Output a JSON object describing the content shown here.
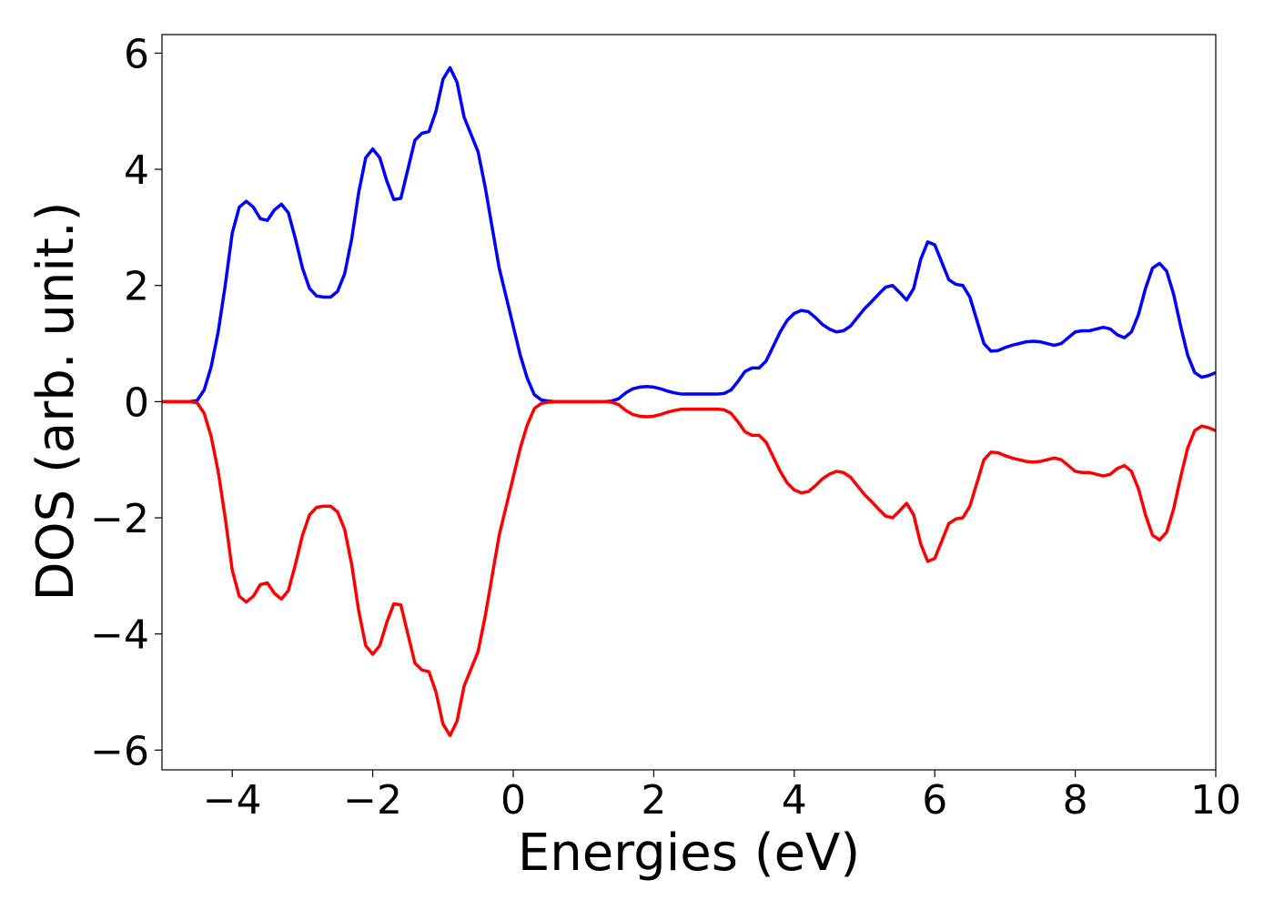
{
  "chart_data": {
    "type": "line",
    "xlabel": "Energies (eV)",
    "ylabel": "DOS (arb. unit.)",
    "x": [
      -5,
      -4.9,
      -4.8,
      -4.7,
      -4.6,
      -4.5,
      -4.4,
      -4.3,
      -4.2,
      -4.1,
      -4,
      -3.9,
      -3.8,
      -3.7,
      -3.6,
      -3.5,
      -3.4,
      -3.3,
      -3.2,
      -3.1,
      -3,
      -2.9,
      -2.8,
      -2.7,
      -2.6,
      -2.5,
      -2.4,
      -2.3,
      -2.2,
      -2.1,
      -2,
      -1.9,
      -1.8,
      -1.7,
      -1.6,
      -1.5,
      -1.4,
      -1.3,
      -1.2,
      -1.1,
      -1,
      -0.9,
      -0.8,
      -0.7,
      -0.6,
      -0.5,
      -0.4,
      -0.3,
      -0.2,
      -0.1,
      0,
      0.1,
      0.2,
      0.3,
      0.4,
      0.5,
      0.6,
      0.7,
      0.8,
      0.9,
      1,
      1.1,
      1.2,
      1.3,
      1.4,
      1.5,
      1.6,
      1.7,
      1.8,
      1.9,
      2,
      2.1,
      2.2,
      2.3,
      2.4,
      2.5,
      2.6,
      2.7,
      2.8,
      2.9,
      3,
      3.1,
      3.2,
      3.3,
      3.4,
      3.5,
      3.6,
      3.7,
      3.8,
      3.9,
      4,
      4.1,
      4.2,
      4.3,
      4.4,
      4.5,
      4.6,
      4.7,
      4.8,
      4.9,
      5,
      5.1,
      5.2,
      5.3,
      5.4,
      5.5,
      5.6,
      5.7,
      5.8,
      5.9,
      6,
      6.1,
      6.2,
      6.3,
      6.4,
      6.5,
      6.6,
      6.7,
      6.8,
      6.9,
      7,
      7.1,
      7.2,
      7.3,
      7.4,
      7.5,
      7.6,
      7.7,
      7.8,
      7.9,
      8,
      8.1,
      8.2,
      8.3,
      8.4,
      8.5,
      8.6,
      8.7,
      8.8,
      8.9,
      9,
      9.1,
      9.2,
      9.3,
      9.4,
      9.5,
      9.6,
      9.7,
      9.8,
      9.9,
      10
    ],
    "series": [
      {
        "color": "#0000ff",
        "values": [
          0,
          0,
          0,
          0,
          0,
          0.02,
          0.2,
          0.6,
          1.2,
          2.0,
          2.9,
          3.35,
          3.45,
          3.35,
          3.15,
          3.12,
          3.3,
          3.4,
          3.25,
          2.8,
          2.3,
          1.95,
          1.82,
          1.8,
          1.8,
          1.9,
          2.2,
          2.8,
          3.6,
          4.2,
          4.35,
          4.2,
          3.8,
          3.48,
          3.5,
          4.0,
          4.5,
          4.62,
          4.65,
          5.0,
          5.55,
          5.75,
          5.5,
          4.9,
          4.6,
          4.3,
          3.7,
          3.0,
          2.3,
          1.8,
          1.3,
          0.8,
          0.4,
          0.12,
          0.03,
          0.01,
          0,
          0,
          0,
          0,
          0,
          0,
          0,
          0,
          0.01,
          0.05,
          0.15,
          0.22,
          0.25,
          0.26,
          0.25,
          0.22,
          0.18,
          0.15,
          0.13,
          0.13,
          0.13,
          0.13,
          0.13,
          0.13,
          0.14,
          0.2,
          0.35,
          0.52,
          0.58,
          0.58,
          0.7,
          0.95,
          1.2,
          1.4,
          1.52,
          1.57,
          1.55,
          1.45,
          1.33,
          1.25,
          1.2,
          1.22,
          1.3,
          1.45,
          1.6,
          1.72,
          1.85,
          1.97,
          2.0,
          1.88,
          1.75,
          1.95,
          2.45,
          2.75,
          2.7,
          2.4,
          2.1,
          2.02,
          2.0,
          1.8,
          1.4,
          1.0,
          0.87,
          0.88,
          0.93,
          0.97,
          1.0,
          1.03,
          1.04,
          1.03,
          1.0,
          0.97,
          1.0,
          1.1,
          1.2,
          1.22,
          1.22,
          1.25,
          1.28,
          1.25,
          1.15,
          1.1,
          1.2,
          1.5,
          1.95,
          2.3,
          2.38,
          2.25,
          1.85,
          1.3,
          0.8,
          0.5,
          0.42,
          0.45,
          0.5
        ]
      },
      {
        "color": "#ff0000",
        "values": [
          0,
          0,
          0,
          0,
          0,
          -0.02,
          -0.2,
          -0.6,
          -1.2,
          -2.0,
          -2.9,
          -3.35,
          -3.45,
          -3.35,
          -3.15,
          -3.12,
          -3.3,
          -3.4,
          -3.25,
          -2.8,
          -2.3,
          -1.95,
          -1.82,
          -1.8,
          -1.8,
          -1.9,
          -2.2,
          -2.8,
          -3.6,
          -4.2,
          -4.35,
          -4.2,
          -3.8,
          -3.48,
          -3.5,
          -4.0,
          -4.5,
          -4.62,
          -4.65,
          -5.0,
          -5.55,
          -5.75,
          -5.5,
          -4.9,
          -4.6,
          -4.3,
          -3.7,
          -3.0,
          -2.3,
          -1.8,
          -1.3,
          -0.8,
          -0.4,
          -0.12,
          -0.03,
          -0.01,
          0,
          0,
          0,
          0,
          0,
          0,
          0,
          0,
          -0.01,
          -0.05,
          -0.15,
          -0.22,
          -0.25,
          -0.26,
          -0.25,
          -0.22,
          -0.18,
          -0.15,
          -0.13,
          -0.13,
          -0.13,
          -0.13,
          -0.13,
          -0.13,
          -0.14,
          -0.2,
          -0.35,
          -0.52,
          -0.58,
          -0.58,
          -0.7,
          -0.95,
          -1.2,
          -1.4,
          -1.52,
          -1.57,
          -1.55,
          -1.45,
          -1.33,
          -1.25,
          -1.2,
          -1.22,
          -1.3,
          -1.45,
          -1.6,
          -1.72,
          -1.85,
          -1.97,
          -2.0,
          -1.88,
          -1.75,
          -1.95,
          -2.45,
          -2.75,
          -2.7,
          -2.4,
          -2.1,
          -2.02,
          -2.0,
          -1.8,
          -1.4,
          -1.0,
          -0.87,
          -0.88,
          -0.93,
          -0.97,
          -1.0,
          -1.03,
          -1.04,
          -1.03,
          -1.0,
          -0.97,
          -1.0,
          -1.1,
          -1.2,
          -1.22,
          -1.22,
          -1.25,
          -1.28,
          -1.25,
          -1.15,
          -1.1,
          -1.2,
          -1.5,
          -1.95,
          -2.3,
          -2.38,
          -2.25,
          -1.85,
          -1.3,
          -0.8,
          -0.5,
          -0.42,
          -0.45,
          -0.5
        ]
      }
    ],
    "xlim": [
      -5,
      10
    ],
    "xticks": [
      {
        "value": -4,
        "label": "−4"
      },
      {
        "value": -2,
        "label": "−2"
      },
      0,
      2,
      4,
      6,
      8,
      10
    ],
    "ylim": [
      -6.34,
      6.32
    ],
    "yticks": [
      {
        "value": -6,
        "label": "−6"
      },
      {
        "value": -4,
        "label": "−4"
      },
      {
        "value": -2,
        "label": "−2"
      },
      0,
      2,
      4,
      6
    ],
    "grid": false
  }
}
